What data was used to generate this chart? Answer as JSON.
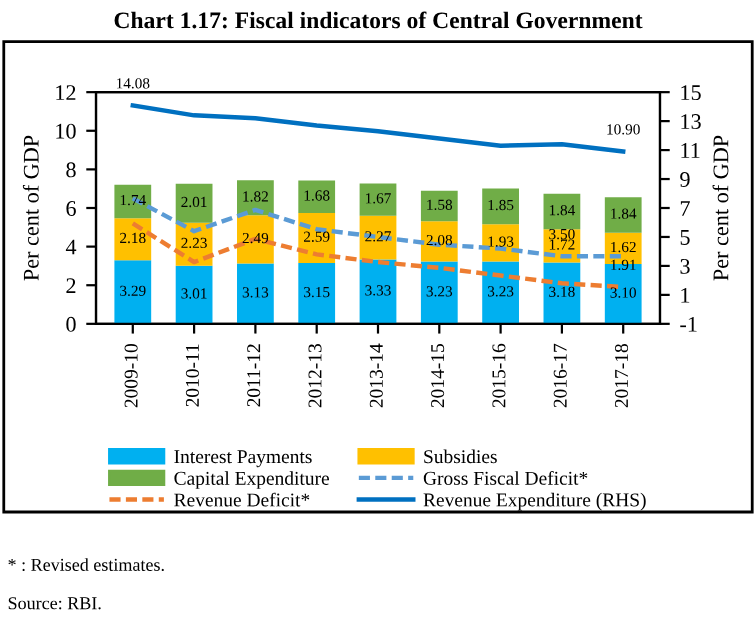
{
  "chart_data": {
    "type": "bar",
    "stacked": true,
    "title": "Chart 1.17: Fiscal indicators of Central Government",
    "categories": [
      "2009-10",
      "2010-11",
      "2011-12",
      "2012-13",
      "2013-14",
      "2014-15",
      "2015-16",
      "2016-17",
      "2017-18"
    ],
    "series": [
      {
        "name": "Interest Payments",
        "color": "#00b0f0",
        "values": [
          3.29,
          3.01,
          3.13,
          3.15,
          3.33,
          3.23,
          3.23,
          3.18,
          3.1
        ],
        "value_labels": [
          "3.29",
          "3.01",
          "3.13",
          "3.15",
          "3.33",
          "3.23",
          "3.23",
          "3.18",
          "3.10"
        ]
      },
      {
        "name": "Subsidies",
        "color": "#ffc000",
        "values": [
          2.18,
          2.23,
          2.49,
          2.59,
          2.27,
          2.08,
          1.93,
          1.72,
          1.62
        ],
        "value_labels": [
          "2.18",
          "2.23",
          "2.49",
          "2.59",
          "2.27",
          "2.08",
          "1.93",
          "1.72",
          "1.62"
        ]
      },
      {
        "name": "Capital Expenditure",
        "color": "#70ad47",
        "values": [
          1.74,
          2.01,
          1.82,
          1.68,
          1.67,
          1.58,
          1.85,
          1.84,
          1.84
        ],
        "value_labels": [
          "1.74",
          "2.01",
          "1.82",
          "1.68",
          "1.67",
          "1.58",
          "1.85",
          "1.84",
          "1.84"
        ]
      },
      {
        "name": "Gross Fiscal Deficit*",
        "type": "line",
        "line_style": "dashed",
        "color": "#5b9bd5",
        "values": [
          6.5,
          4.8,
          5.9,
          4.9,
          4.5,
          4.1,
          3.9,
          3.5,
          3.5
        ],
        "value_labels": [
          null,
          null,
          null,
          null,
          null,
          null,
          null,
          "3.50",
          null
        ]
      },
      {
        "name": "Revenue Deficit*",
        "type": "line",
        "line_style": "dashed",
        "color": "#ed7d31",
        "values": [
          5.2,
          3.2,
          4.4,
          3.6,
          3.2,
          2.9,
          2.5,
          2.1,
          1.91
        ],
        "value_labels": [
          null,
          null,
          null,
          null,
          null,
          null,
          null,
          null,
          "1.91"
        ]
      },
      {
        "name": "Revenue Expenditure (RHS)",
        "type": "line",
        "line_style": "solid",
        "axis": "y2",
        "color": "#0070c0",
        "values": [
          14.08,
          13.4,
          13.2,
          12.7,
          12.3,
          11.8,
          11.3,
          11.4,
          10.9
        ],
        "value_labels": [
          "14.08",
          null,
          null,
          null,
          null,
          null,
          null,
          null,
          "10.90"
        ]
      }
    ],
    "ylabel": "Per cent of GDP",
    "y2label": "Per cent of GDP",
    "ylim": [
      0,
      12
    ],
    "yticks": [
      0,
      2,
      4,
      6,
      8,
      10,
      12
    ],
    "y2lim": [
      -1,
      15
    ],
    "y2ticks": [
      -1,
      1,
      3,
      5,
      7,
      9,
      11,
      13,
      15
    ],
    "legend": "bottom",
    "grid": false,
    "annotations": [
      "* : Revised estimates.",
      "Source: RBI."
    ]
  }
}
